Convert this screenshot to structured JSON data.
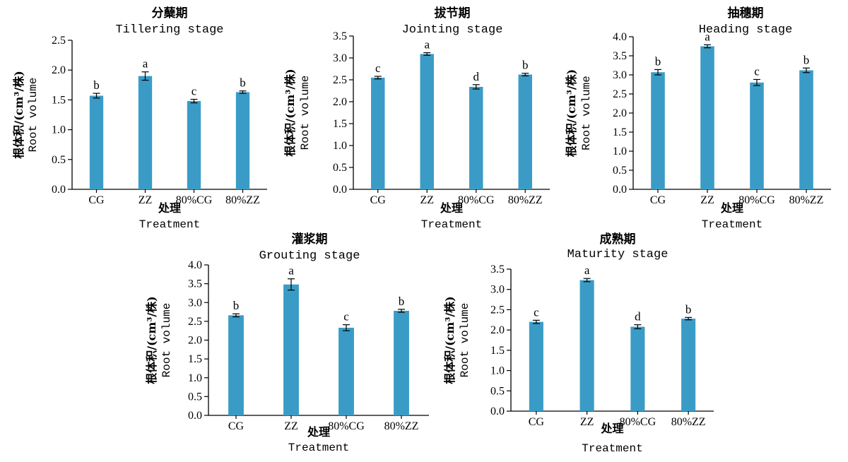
{
  "chart_data": [
    {
      "type": "bar",
      "title": "分蘖期",
      "subtitle": "Tillering stage",
      "xlabel": "处理",
      "xlabel_en": "Treatment",
      "ylabel": "根体积/(cm³/株)",
      "ylabel_en": "Root volume",
      "categories": [
        "CG",
        "ZZ",
        "80%CG",
        "80%ZZ"
      ],
      "values": [
        1.57,
        1.9,
        1.48,
        1.63
      ],
      "errors": [
        0.04,
        0.07,
        0.03,
        0.02
      ],
      "letters": [
        "b",
        "a",
        "c",
        "b"
      ],
      "ylim": [
        0.0,
        2.5
      ],
      "yticks": [
        "0.0",
        "0.5",
        "1.0",
        "1.5",
        "2.0",
        "2.5"
      ],
      "bar_color": "#3a9cc6"
    },
    {
      "type": "bar",
      "title": "拔节期",
      "subtitle": "Jointing stage",
      "xlabel": "处理",
      "xlabel_en": "Treatment",
      "ylabel": "根体积/(cm³/株)",
      "ylabel_en": "Root volume",
      "categories": [
        "CG",
        "ZZ",
        "80%CG",
        "80%ZZ"
      ],
      "values": [
        2.55,
        3.09,
        2.34,
        2.62
      ],
      "errors": [
        0.03,
        0.03,
        0.05,
        0.03
      ],
      "letters": [
        "c",
        "a",
        "d",
        "b"
      ],
      "ylim": [
        0.0,
        3.5
      ],
      "yticks": [
        "0.0",
        "0.5",
        "1.0",
        "1.5",
        "2.0",
        "2.5",
        "3.0",
        "3.5"
      ],
      "bar_color": "#3a9cc6"
    },
    {
      "type": "bar",
      "title": "抽穗期",
      "subtitle": "Heading stage",
      "xlabel": "处理",
      "xlabel_en": "Treatment",
      "ylabel": "根体积/(cm³/株)",
      "ylabel_en": "Root volume",
      "categories": [
        "CG",
        "ZZ",
        "80%CG",
        "80%ZZ"
      ],
      "values": [
        3.07,
        3.75,
        2.8,
        3.12
      ],
      "errors": [
        0.07,
        0.04,
        0.08,
        0.06
      ],
      "letters": [
        "b",
        "a",
        "c",
        "b"
      ],
      "ylim": [
        0.0,
        4.0
      ],
      "yticks": [
        "0.0",
        "0.5",
        "1.0",
        "1.5",
        "2.0",
        "2.5",
        "3.0",
        "3.5",
        "4.0"
      ],
      "bar_color": "#3a9cc6"
    },
    {
      "type": "bar",
      "title": "灌浆期",
      "subtitle": "Grouting stage",
      "xlabel": "处理",
      "xlabel_en": "Treatment",
      "ylabel": "根体积/(cm³/株)",
      "ylabel_en": "Root volume",
      "categories": [
        "CG",
        "ZZ",
        "80%CG",
        "80%ZZ"
      ],
      "values": [
        2.66,
        3.48,
        2.33,
        2.78
      ],
      "errors": [
        0.04,
        0.15,
        0.08,
        0.04
      ],
      "letters": [
        "b",
        "a",
        "c",
        "b"
      ],
      "ylim": [
        0.0,
        4.0
      ],
      "yticks": [
        "0.0",
        "0.5",
        "1.0",
        "1.5",
        "2.0",
        "2.5",
        "3.0",
        "3.5",
        "4.0"
      ],
      "bar_color": "#3a9cc6"
    },
    {
      "type": "bar",
      "title": "成熟期",
      "subtitle": "Maturity stage",
      "xlabel": "处理",
      "xlabel_en": "Treatment",
      "ylabel": "根体积/(cm³/株)",
      "ylabel_en": "Root volume",
      "categories": [
        "CG",
        "ZZ",
        "80%CG",
        "80%ZZ"
      ],
      "values": [
        2.2,
        3.23,
        2.08,
        2.28
      ],
      "errors": [
        0.04,
        0.04,
        0.05,
        0.03
      ],
      "letters": [
        "c",
        "a",
        "d",
        "b"
      ],
      "ylim": [
        0.0,
        3.5
      ],
      "yticks": [
        "0.0",
        "0.5",
        "1.0",
        "1.5",
        "2.0",
        "2.5",
        "3.0",
        "3.5"
      ],
      "bar_color": "#3a9cc6"
    }
  ]
}
